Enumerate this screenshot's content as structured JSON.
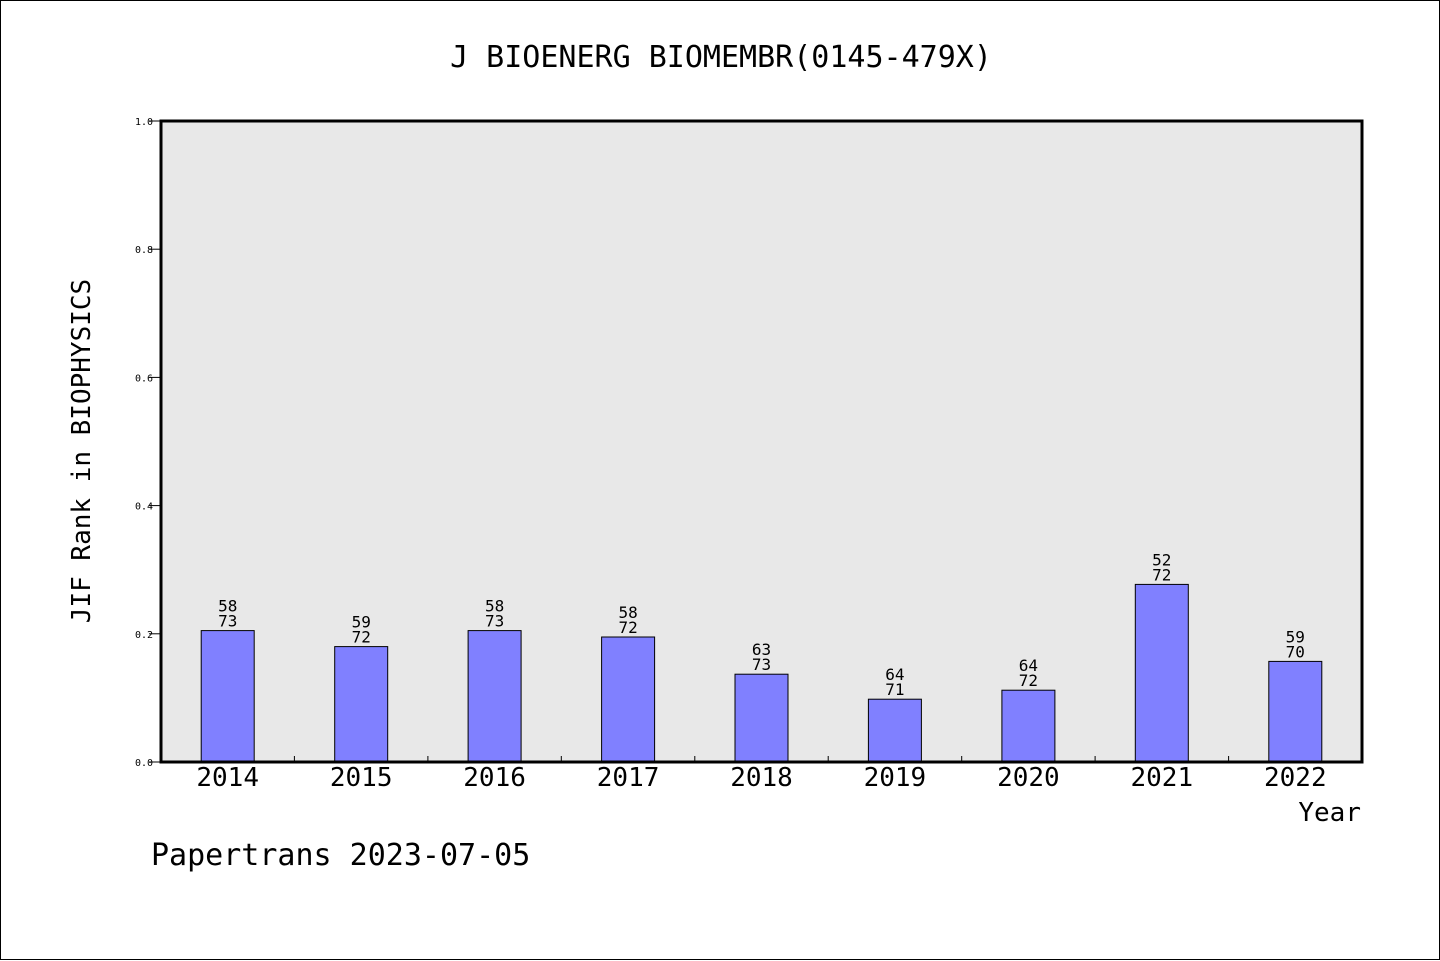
{
  "chart_data": {
    "type": "bar",
    "title": "J BIOENERG BIOMEMBR(0145-479X)",
    "xlabel": "Year",
    "ylabel": "JIF Rank in BIOPHYSICS",
    "ylim": [
      0,
      1.0
    ],
    "yticks": [
      "0.0",
      "0.2",
      "0.4",
      "0.6",
      "0.8",
      "1.0"
    ],
    "categories": [
      "2014",
      "2015",
      "2016",
      "2017",
      "2018",
      "2019",
      "2020",
      "2021",
      "2022"
    ],
    "values": [
      0.205,
      0.18,
      0.205,
      0.195,
      0.137,
      0.098,
      0.112,
      0.277,
      0.157
    ],
    "labels_rank": [
      "58",
      "59",
      "58",
      "58",
      "63",
      "64",
      "64",
      "52",
      "59"
    ],
    "labels_total": [
      "73",
      "72",
      "73",
      "72",
      "73",
      "71",
      "72",
      "72",
      "70"
    ],
    "grid": false,
    "colors": {
      "bar_fill": "#8080ff",
      "bar_stroke": "#000000",
      "plot_background": "#e8e8e8"
    }
  },
  "footer": "Papertrans 2023-07-05"
}
